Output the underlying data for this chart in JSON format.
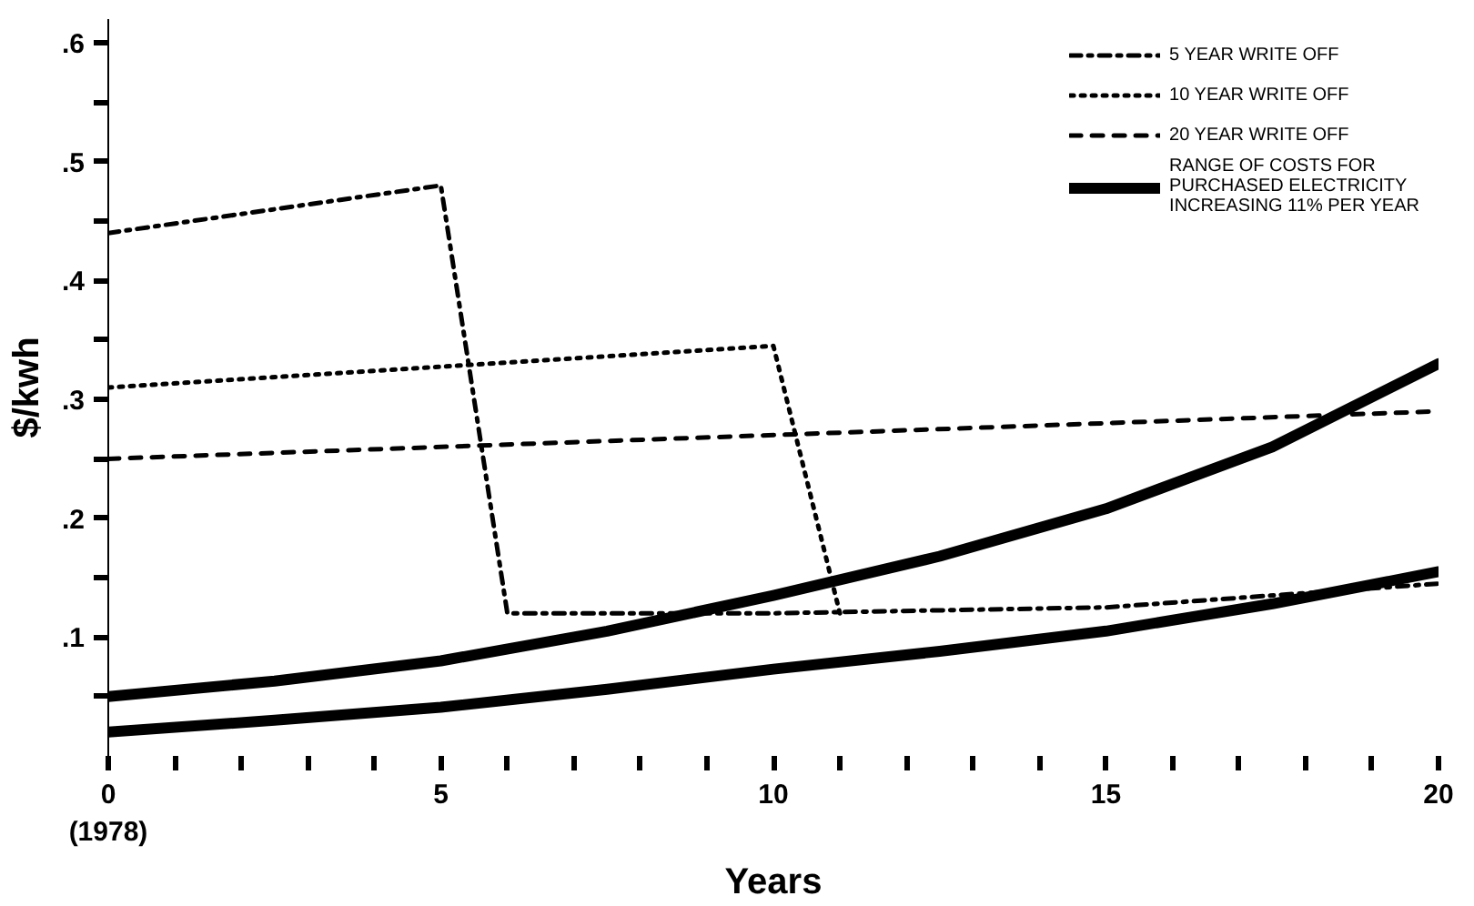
{
  "chart_data": {
    "type": "line",
    "xlabel": "Years",
    "ylabel": "$/kwh",
    "xlim": [
      0,
      20
    ],
    "ylim": [
      0,
      0.62
    ],
    "xticks": [
      {
        "value": 0,
        "label": "0\n(1978)"
      },
      {
        "value": 1,
        "label": null
      },
      {
        "value": 2,
        "label": null
      },
      {
        "value": 3,
        "label": null
      },
      {
        "value": 4,
        "label": null
      },
      5,
      {
        "value": 6,
        "label": null
      },
      {
        "value": 7,
        "label": null
      },
      {
        "value": 8,
        "label": null
      },
      {
        "value": 9,
        "label": null
      },
      10,
      {
        "value": 11,
        "label": null
      },
      {
        "value": 12,
        "label": null
      },
      {
        "value": 13,
        "label": null
      },
      {
        "value": 14,
        "label": null
      },
      15,
      {
        "value": 16,
        "label": null
      },
      {
        "value": 17,
        "label": null
      },
      {
        "value": 18,
        "label": null
      },
      {
        "value": 19,
        "label": null
      },
      20
    ],
    "yticks": [
      {
        "value": 0.05,
        "label": null
      },
      {
        "value": 0.1,
        "label": ".1"
      },
      {
        "value": 0.15,
        "label": null
      },
      {
        "value": 0.2,
        "label": ".2"
      },
      {
        "value": 0.25,
        "label": null
      },
      {
        "value": 0.3,
        "label": ".3"
      },
      {
        "value": 0.35,
        "label": null
      },
      {
        "value": 0.4,
        "label": ".4"
      },
      {
        "value": 0.45,
        "label": null
      },
      {
        "value": 0.5,
        "label": ".5"
      },
      {
        "value": 0.55,
        "label": null
      },
      {
        "value": 0.6,
        "label": ".6"
      }
    ],
    "grid": false,
    "legend": "top right",
    "series": [
      {
        "name": "5 YEAR WRITE OFF",
        "color": "#000000",
        "line_style": "dashdot",
        "x": [
          0,
          5,
          6,
          10,
          15,
          20
        ],
        "values": [
          0.44,
          0.48,
          0.12,
          0.12,
          0.125,
          0.145
        ]
      },
      {
        "name": "10 YEAR WRITE OFF",
        "color": "#000000",
        "line_style": "dotted",
        "x": [
          0,
          10,
          11
        ],
        "values": [
          0.31,
          0.345,
          0.12
        ]
      },
      {
        "name": "20 YEAR WRITE OFF",
        "color": "#000000",
        "line_style": "dashed",
        "x": [
          0,
          20
        ],
        "values": [
          0.25,
          0.29
        ]
      },
      {
        "name": "RANGE OF COSTS FOR PURCHASED ELECTRICITY INCREASING 11% PER YEAR",
        "color": "#000000",
        "line_style": "solid",
        "x": [
          0,
          2.5,
          5,
          7.5,
          10,
          12.5,
          15,
          17.5,
          20
        ],
        "values": [
          0.05,
          0.063,
          0.08,
          0.105,
          0.135,
          0.168,
          0.208,
          0.26,
          0.33
        ]
      },
      {
        "color": "#000000",
        "line_style": "solid",
        "x": [
          0,
          2.5,
          5,
          7.5,
          10,
          12.5,
          15,
          17.5,
          20
        ],
        "values": [
          0.02,
          0.03,
          0.041,
          0.056,
          0.073,
          0.088,
          0.105,
          0.128,
          0.155
        ]
      }
    ]
  }
}
